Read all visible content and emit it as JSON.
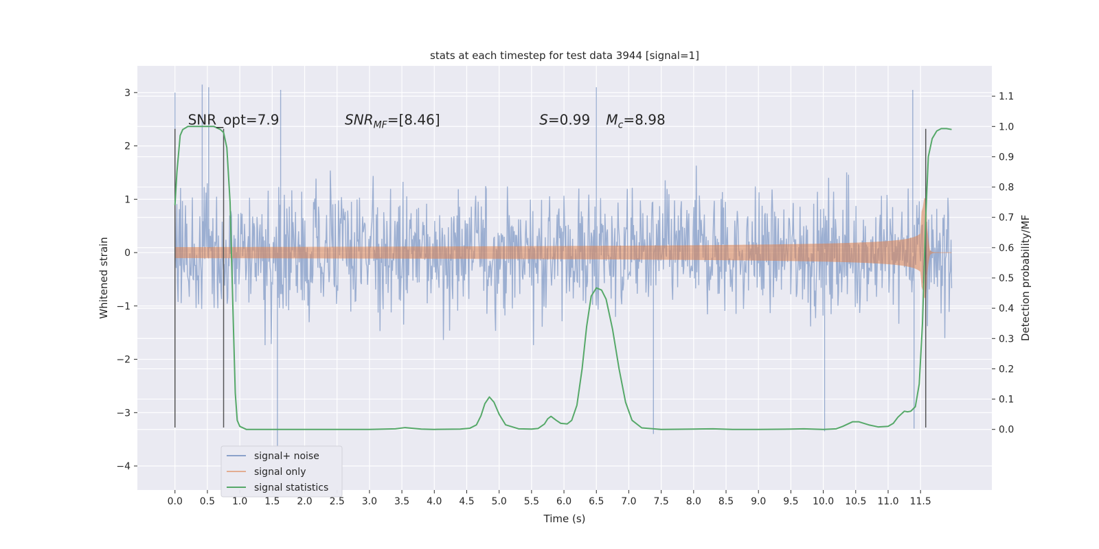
{
  "chart_data": {
    "type": "line",
    "title": "stats at each timestep for test data 3944 [signal=1]",
    "xlabel": "Time (s)",
    "ylabel": "Whitened strain",
    "y2label": "Detection probability/MF",
    "xlim": [
      -0.58,
      12.6
    ],
    "ylim": [
      -4.45,
      3.5
    ],
    "y2lim": [
      -0.2,
      1.2
    ],
    "x_ticks": [
      0.0,
      0.5,
      1.0,
      1.5,
      2.0,
      2.5,
      3.0,
      3.5,
      4.0,
      4.5,
      5.0,
      5.5,
      6.0,
      6.5,
      7.0,
      7.5,
      8.0,
      8.5,
      9.0,
      9.5,
      10.0,
      10.5,
      11.0,
      11.5
    ],
    "x_tick_labels": [
      "0.0",
      "0.5",
      "1.0",
      "1.5",
      "2.0",
      "2.5",
      "3.0",
      "3.5",
      "4.0",
      "4.5",
      "5.0",
      "5.5",
      "6.0",
      "6.5",
      "7.0",
      "7.5",
      "8.0",
      "8.5",
      "9.0",
      "9.5",
      "10.0",
      "10.5",
      "11.0",
      "11.5"
    ],
    "y_ticks": [
      -4,
      -3,
      -2,
      -1,
      0,
      1,
      2,
      3
    ],
    "y_tick_labels": [
      "−4",
      "−3",
      "−2",
      "−1",
      "0",
      "1",
      "2",
      "3"
    ],
    "y2_ticks": [
      0.0,
      0.1,
      0.2,
      0.3,
      0.4,
      0.5,
      0.6,
      0.7,
      0.8,
      0.9,
      1.0,
      1.1
    ],
    "y2_tick_labels": [
      "0.0",
      "0.1",
      "0.2",
      "0.3",
      "0.4",
      "0.5",
      "0.6",
      "0.7",
      "0.8",
      "0.9",
      "1.0",
      "1.1"
    ],
    "grid": true,
    "legend_position": "bottom-left",
    "colors": {
      "plot_bg": "#eaeaf2",
      "grid": "#ffffff",
      "noise": "#4c72b0",
      "signal": "#dd8452",
      "stats": "#55a868",
      "vlines": "#555555"
    },
    "series": [
      {
        "name": "signal+ noise",
        "description_kind": "noisy strain trace between about -4 and 3",
        "time_range": [
          0.0,
          11.98
        ],
        "typical_envelope": [
          -1.8,
          1.8
        ],
        "extremes": [
          {
            "x": 0.0,
            "y": 3.0
          },
          {
            "x": 0.42,
            "y": 3.15
          },
          {
            "x": 0.52,
            "y": 3.1
          },
          {
            "x": 1.63,
            "y": 3.05
          },
          {
            "x": 1.58,
            "y": -3.65
          },
          {
            "x": 6.5,
            "y": 3.1
          },
          {
            "x": 7.38,
            "y": -3.4
          },
          {
            "x": 10.02,
            "y": -3.35
          },
          {
            "x": 11.38,
            "y": 3.05
          },
          {
            "x": 11.4,
            "y": -3.3
          }
        ]
      },
      {
        "name": "signal only",
        "description_kind": "chirp waveform growing toward merger",
        "merger_time": 11.58,
        "peak_amplitude": 1.15,
        "end_time": 11.98
      },
      {
        "name": "signal statistics",
        "x": [
          0.0,
          0.03,
          0.08,
          0.12,
          0.2,
          0.3,
          0.5,
          0.6,
          0.7,
          0.75,
          0.8,
          0.85,
          0.9,
          0.93,
          0.96,
          1.0,
          1.1,
          1.5,
          2.0,
          2.5,
          3.0,
          3.4,
          3.55,
          3.65,
          3.8,
          4.0,
          4.4,
          4.55,
          4.65,
          4.72,
          4.78,
          4.85,
          4.92,
          5.0,
          5.1,
          5.3,
          5.5,
          5.6,
          5.7,
          5.75,
          5.8,
          5.88,
          5.95,
          6.05,
          6.12,
          6.2,
          6.28,
          6.35,
          6.42,
          6.5,
          6.58,
          6.65,
          6.75,
          6.85,
          6.95,
          7.05,
          7.2,
          7.5,
          8.0,
          8.3,
          8.6,
          9.0,
          9.5,
          9.7,
          10.0,
          10.2,
          10.3,
          10.45,
          10.55,
          10.7,
          10.85,
          11.0,
          11.08,
          11.15,
          11.25,
          11.3,
          11.35,
          11.42,
          11.48,
          11.53,
          11.58,
          11.62,
          11.68,
          11.75,
          11.82,
          11.9,
          11.98
        ],
        "y": [
          0.74,
          0.85,
          0.97,
          0.99,
          1.0,
          1.0,
          1.0,
          1.0,
          0.99,
          0.98,
          0.93,
          0.75,
          0.35,
          0.12,
          0.03,
          0.01,
          0.0,
          0.0,
          0.0,
          0.0,
          0.0,
          0.002,
          0.006,
          0.004,
          0.001,
          0.0,
          0.001,
          0.004,
          0.015,
          0.045,
          0.085,
          0.107,
          0.09,
          0.05,
          0.015,
          0.002,
          0.001,
          0.003,
          0.018,
          0.035,
          0.043,
          0.03,
          0.02,
          0.018,
          0.03,
          0.08,
          0.2,
          0.34,
          0.44,
          0.467,
          0.46,
          0.43,
          0.33,
          0.2,
          0.09,
          0.03,
          0.005,
          0.0,
          0.001,
          0.002,
          0.0,
          0.0,
          0.001,
          0.002,
          0.0,
          0.002,
          0.01,
          0.025,
          0.025,
          0.015,
          0.008,
          0.01,
          0.02,
          0.04,
          0.06,
          0.058,
          0.06,
          0.075,
          0.15,
          0.35,
          0.7,
          0.9,
          0.96,
          0.985,
          0.993,
          0.993,
          0.99
        ]
      }
    ],
    "vertical_lines": [
      {
        "x": 0.0,
        "y_range": [
          -3.28,
          2.32
        ]
      },
      {
        "x": 0.75,
        "y_range": [
          -3.28,
          2.32
        ]
      },
      {
        "x": 11.58,
        "y_range": [
          -3.28,
          2.32
        ]
      }
    ],
    "annotations": [
      {
        "text": "SNR_opt=7.9",
        "x": 0.2,
        "y": 2.4,
        "kind": "plain"
      },
      {
        "text": "SNR",
        "sub": "MF",
        "suffix": "=[8.46]",
        "x": 2.62,
        "y": 2.4,
        "kind": "math"
      },
      {
        "text": "S",
        "suffix": "=0.99",
        "x": 5.62,
        "y": 2.4,
        "kind": "math"
      },
      {
        "text": "M",
        "sub": "c",
        "suffix": "=8.98",
        "x": 6.65,
        "y": 2.4,
        "kind": "math"
      }
    ],
    "legend": [
      {
        "label": "signal+ noise",
        "color": "#4c72b0"
      },
      {
        "label": "signal only",
        "color": "#dd8452"
      },
      {
        "label": "signal statistics",
        "color": "#55a868"
      }
    ]
  }
}
